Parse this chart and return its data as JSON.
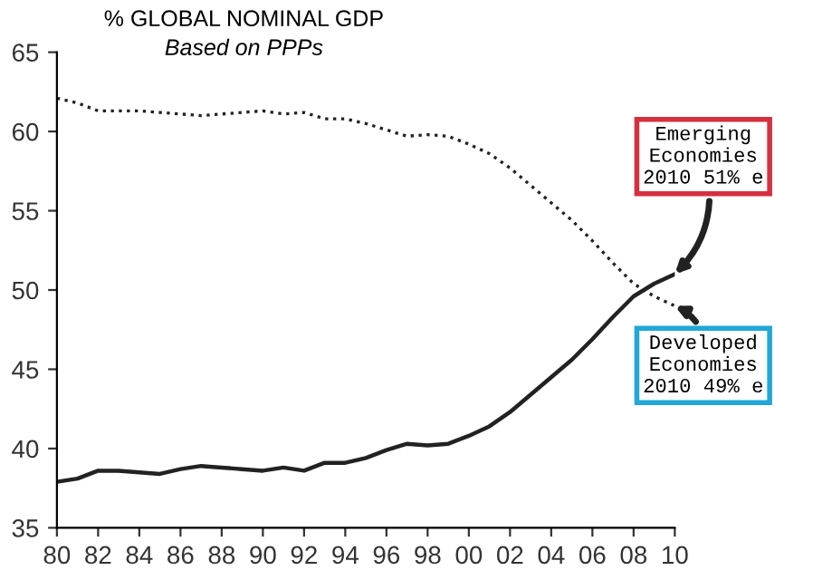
{
  "chart_data": {
    "type": "line",
    "title": "% GLOBAL NOMINAL GDP",
    "subtitle": "Based on PPPs",
    "x": [
      1980,
      1981,
      1982,
      1983,
      1984,
      1985,
      1986,
      1987,
      1988,
      1989,
      1990,
      1991,
      1992,
      1993,
      1994,
      1995,
      1996,
      1997,
      1998,
      1999,
      2000,
      2001,
      2002,
      2003,
      2004,
      2005,
      2006,
      2007,
      2008,
      2009,
      2010
    ],
    "series": [
      {
        "color": "#222222",
        "line_style": "dotted",
        "values": [
          62.1,
          61.8,
          61.3,
          61.3,
          61.3,
          61.2,
          61.1,
          61.0,
          61.1,
          61.2,
          61.3,
          61.1,
          61.2,
          60.8,
          60.8,
          60.5,
          60.1,
          59.7,
          59.8,
          59.7,
          59.2,
          58.6,
          57.7,
          56.6,
          55.5,
          54.4,
          53.1,
          51.7,
          50.4,
          49.6,
          49.0
        ]
      },
      {
        "color": "#222222",
        "line_style": "solid",
        "values": [
          37.9,
          38.1,
          38.6,
          38.6,
          38.5,
          38.4,
          38.7,
          38.9,
          38.8,
          38.7,
          38.6,
          38.8,
          38.6,
          39.1,
          39.1,
          39.4,
          39.9,
          40.3,
          40.2,
          40.3,
          40.8,
          41.4,
          42.3,
          43.4,
          44.5,
          45.6,
          46.9,
          48.3,
          49.6,
          50.4,
          51.0
        ]
      }
    ],
    "annotations": [
      {
        "text": "Emerging\nEconomies\n2010 51% e",
        "x": 2010,
        "y": 51
      },
      {
        "text": "Developed\nEconomies\n2010 49% e",
        "x": 2010,
        "y": 49
      }
    ],
    "xlim": [
      1980,
      2010
    ],
    "xticks": [
      {
        "value": 1980,
        "label": "80"
      },
      {
        "value": 1982,
        "label": "82"
      },
      {
        "value": 1984,
        "label": "84"
      },
      {
        "value": 1986,
        "label": "86"
      },
      {
        "value": 1988,
        "label": "88"
      },
      {
        "value": 1990,
        "label": "90"
      },
      {
        "value": 1992,
        "label": "92"
      },
      {
        "value": 1994,
        "label": "94"
      },
      {
        "value": 1996,
        "label": "96"
      },
      {
        "value": 1998,
        "label": "98"
      },
      {
        "value": 2000,
        "label": "00"
      },
      {
        "value": 2002,
        "label": "02"
      },
      {
        "value": 2004,
        "label": "04"
      },
      {
        "value": 2006,
        "label": "06"
      },
      {
        "value": 2008,
        "label": "08"
      },
      {
        "value": 2010,
        "label": "10"
      }
    ],
    "ylim": [
      35,
      65
    ],
    "yticks": [
      35,
      40,
      45,
      50,
      55,
      60,
      65
    ],
    "grid": false,
    "legend": false
  }
}
